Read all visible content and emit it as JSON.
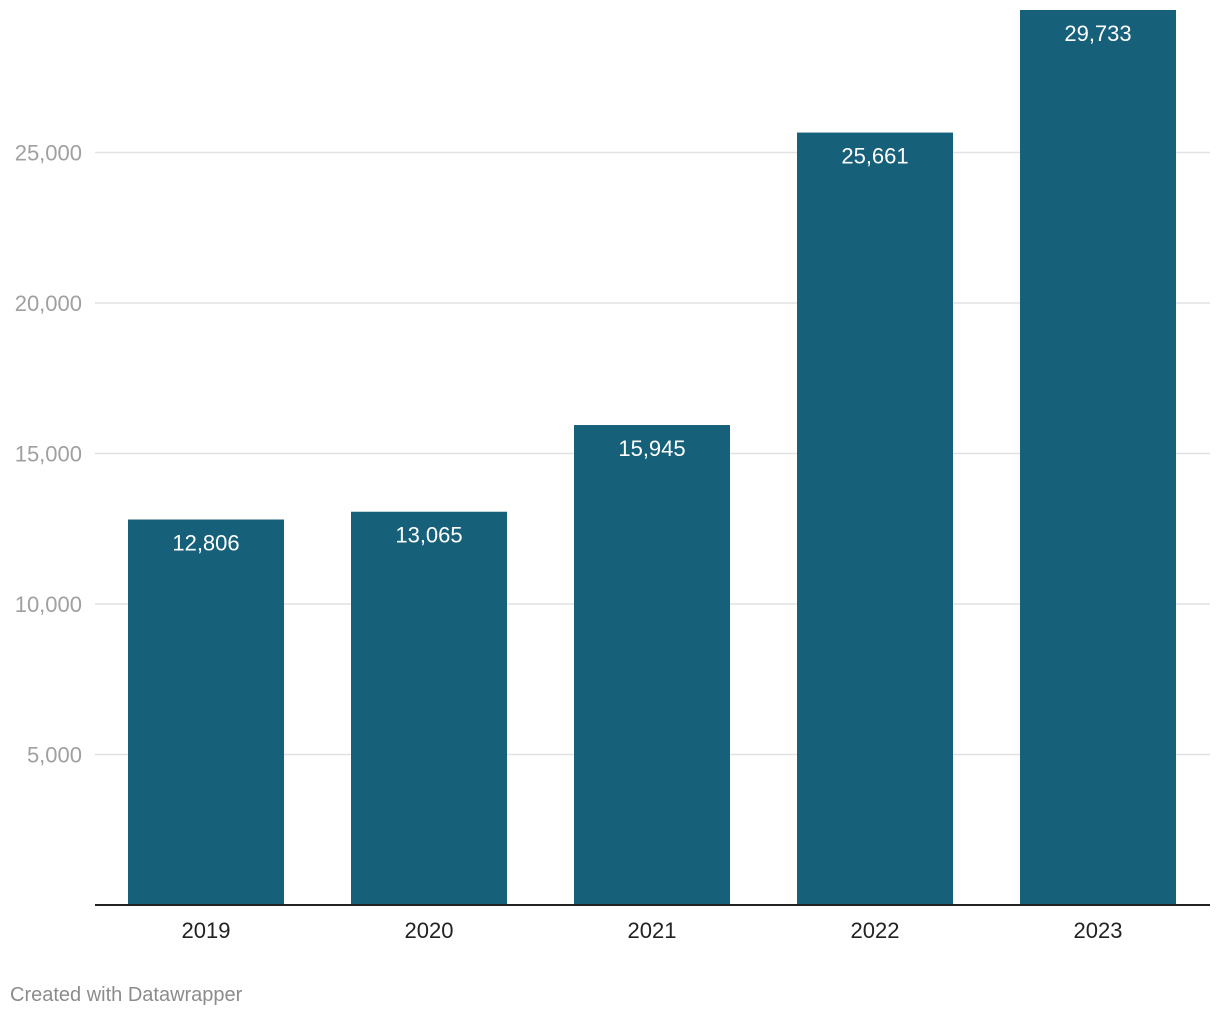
{
  "chart_data": {
    "type": "bar",
    "title": "",
    "xlabel": "",
    "ylabel": "",
    "categories": [
      "2019",
      "2020",
      "2021",
      "2022",
      "2023"
    ],
    "values": [
      12806,
      13065,
      15945,
      25661,
      29733
    ],
    "value_labels": [
      "12,806",
      "13,065",
      "15,945",
      "25,661",
      "29,733"
    ],
    "ylim": [
      0,
      29733
    ],
    "y_ticks": [
      5000,
      10000,
      15000,
      20000,
      25000
    ],
    "y_tick_labels": [
      "5,000",
      "10,000",
      "15,000",
      "20,000",
      "25,000"
    ],
    "grid": true,
    "legend": "none",
    "colors": {
      "bar": "#17607a",
      "grid": "#e2e2e2",
      "axis": "#222222",
      "y_tick_text": "#a0a0a0",
      "x_tick_text": "#222222",
      "value_label": "#ffffff"
    }
  },
  "footer": {
    "credit": "Created with Datawrapper"
  }
}
